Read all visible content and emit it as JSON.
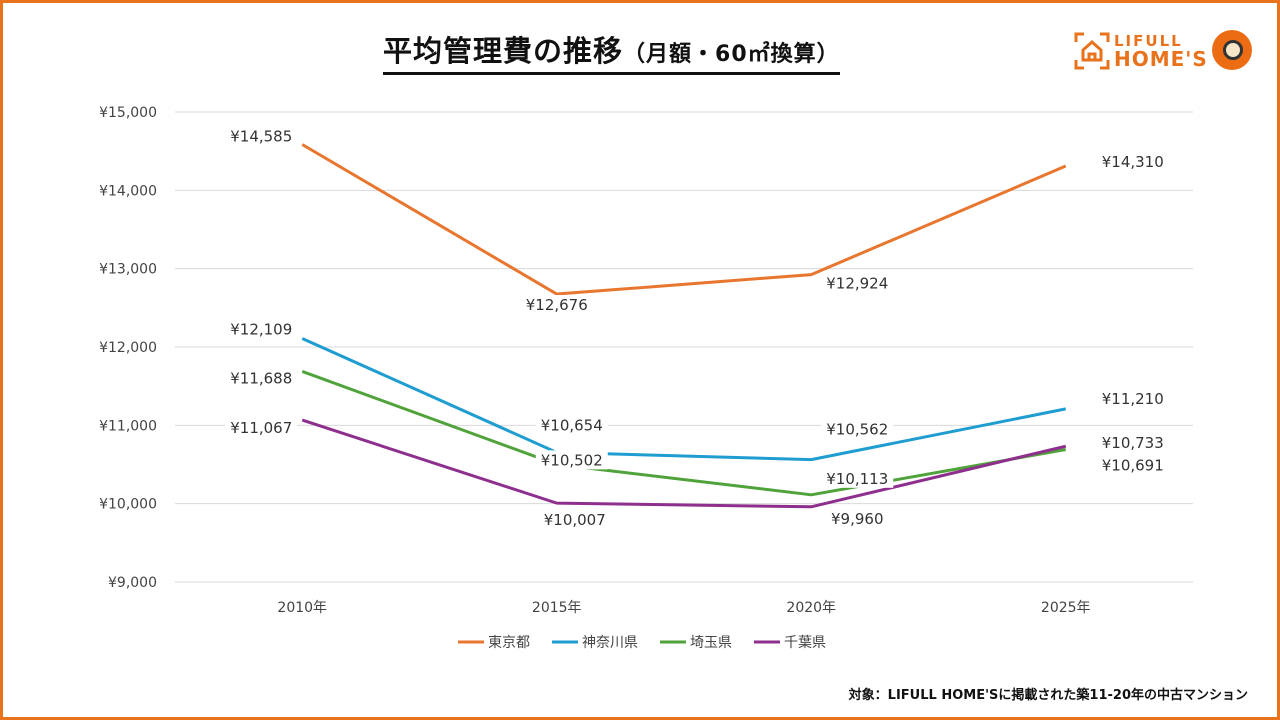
{
  "title": {
    "main": "平均管理費の推移",
    "sub": "（月額・60㎡換算）"
  },
  "logo": {
    "line1": "LIFULL",
    "line2": "HOME'S"
  },
  "note": "対象：LIFULL HOME'Sに掲載された築11-20年の中古マンション",
  "chart_data": {
    "type": "line",
    "categories": [
      "2010年",
      "2015年",
      "2020年",
      "2025年"
    ],
    "ylim": [
      9000,
      15000
    ],
    "yticks": [
      9000,
      10000,
      11000,
      12000,
      13000,
      14000,
      15000
    ],
    "ytick_labels": [
      "¥9,000",
      "¥10,000",
      "¥11,000",
      "¥12,000",
      "¥13,000",
      "¥14,000",
      "¥15,000"
    ],
    "grid": true,
    "legend": "bottom",
    "series": [
      {
        "name": "東京都",
        "color": "#e8762f",
        "values": [
          14585,
          12676,
          12924,
          14310
        ],
        "labels": [
          "¥14,585",
          "¥12,676",
          "¥12,924",
          "¥14,310"
        ]
      },
      {
        "name": "神奈川県",
        "color": "#1f9dd1",
        "values": [
          12109,
          10654,
          10562,
          11210
        ],
        "labels": [
          "¥12,109",
          "¥10,654",
          "¥10,562",
          "¥11,210"
        ]
      },
      {
        "name": "埼玉県",
        "color": "#4fa33a",
        "values": [
          11688,
          10502,
          10113,
          10691
        ],
        "labels": [
          "¥11,688",
          "¥10,502",
          "¥10,113",
          "¥10,691"
        ]
      },
      {
        "name": "千葉県",
        "color": "#8e2f8e",
        "values": [
          11067,
          10007,
          9960,
          10733
        ],
        "labels": [
          "¥11,067",
          "¥10,007",
          "¥9,960",
          "¥10,733"
        ]
      }
    ]
  }
}
